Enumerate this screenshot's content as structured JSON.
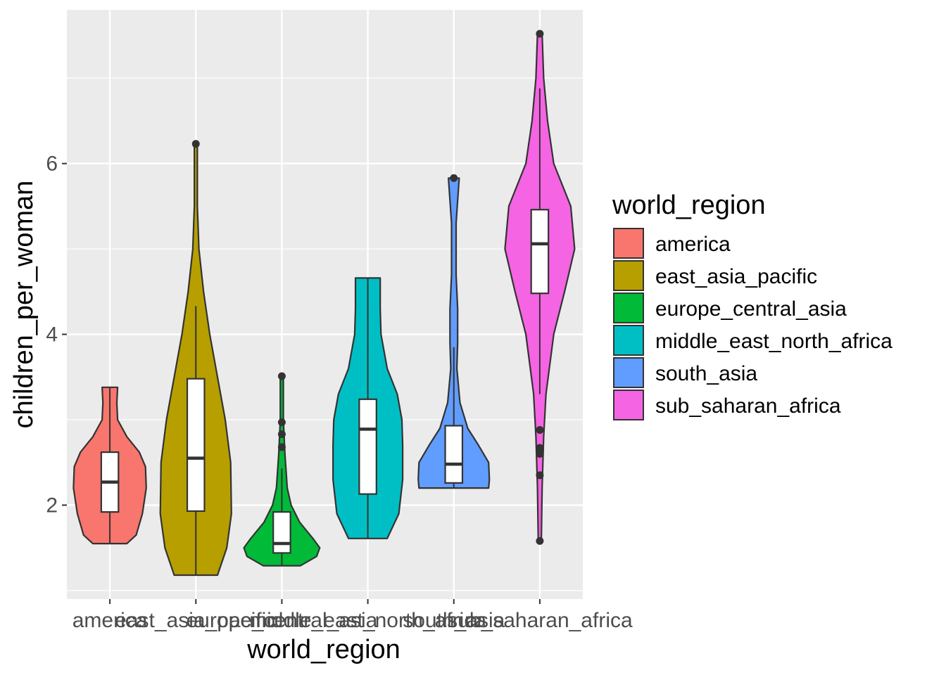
{
  "chart_data": {
    "type": "violin",
    "xlabel": "world_region",
    "ylabel": "children_per_woman",
    "ylim": [
      0.9,
      7.8
    ],
    "yticks": [
      2,
      4,
      6
    ],
    "categories": [
      "america",
      "east_asia_pacific",
      "europe_central_asia",
      "middle_east_north_africa",
      "south_asia",
      "sub_saharan_africa"
    ],
    "legend": {
      "title": "world_region",
      "position": "right"
    },
    "grid": true,
    "series": [
      {
        "name": "america",
        "color": "#F8766D",
        "boxplot": {
          "min": 1.55,
          "q1": 1.92,
          "median": 2.27,
          "q3": 2.62,
          "max": 3.38
        },
        "outliers": [],
        "density": [
          [
            1.55,
            0.22
          ],
          [
            1.65,
            0.34
          ],
          [
            1.9,
            0.42
          ],
          [
            2.2,
            0.47
          ],
          [
            2.45,
            0.46
          ],
          [
            2.62,
            0.38
          ],
          [
            2.8,
            0.22
          ],
          [
            3.0,
            0.1
          ],
          [
            3.2,
            0.09
          ],
          [
            3.38,
            0.1
          ]
        ]
      },
      {
        "name": "east_asia_pacific",
        "color": "#B79F00",
        "boxplot": {
          "min": 1.18,
          "q1": 1.93,
          "median": 2.55,
          "q3": 3.48,
          "max": 4.33
        },
        "outliers": [
          6.23
        ],
        "density": [
          [
            1.18,
            0.28
          ],
          [
            1.5,
            0.4
          ],
          [
            1.9,
            0.46
          ],
          [
            2.5,
            0.45
          ],
          [
            3.0,
            0.38
          ],
          [
            3.5,
            0.28
          ],
          [
            4.0,
            0.18
          ],
          [
            4.5,
            0.1
          ],
          [
            5.0,
            0.04
          ],
          [
            5.5,
            0.02
          ],
          [
            6.23,
            0.02
          ]
        ]
      },
      {
        "name": "europe_central_asia",
        "color": "#00BA38",
        "boxplot": {
          "min": 1.29,
          "q1": 1.44,
          "median": 1.55,
          "q3": 1.92,
          "max": 2.43
        },
        "outliers": [
          2.68,
          2.83,
          2.97,
          3.51
        ],
        "density": [
          [
            1.29,
            0.24
          ],
          [
            1.4,
            0.45
          ],
          [
            1.5,
            0.49
          ],
          [
            1.6,
            0.41
          ],
          [
            1.8,
            0.23
          ],
          [
            2.0,
            0.12
          ],
          [
            2.2,
            0.07
          ],
          [
            2.6,
            0.04
          ],
          [
            3.0,
            0.02
          ],
          [
            3.51,
            0.02
          ]
        ]
      },
      {
        "name": "middle_east_north_africa",
        "color": "#00BFC4",
        "boxplot": {
          "min": 1.61,
          "q1": 2.13,
          "median": 2.89,
          "q3": 3.24,
          "max": 4.66
        },
        "outliers": [],
        "density": [
          [
            1.61,
            0.25
          ],
          [
            1.9,
            0.4
          ],
          [
            2.3,
            0.45
          ],
          [
            2.7,
            0.45
          ],
          [
            3.0,
            0.44
          ],
          [
            3.3,
            0.38
          ],
          [
            3.6,
            0.25
          ],
          [
            4.0,
            0.17
          ],
          [
            4.3,
            0.16
          ],
          [
            4.66,
            0.16
          ]
        ]
      },
      {
        "name": "south_asia",
        "color": "#619CFF",
        "boxplot": {
          "min": 2.2,
          "q1": 2.26,
          "median": 2.48,
          "q3": 2.93,
          "max": 3.85
        },
        "outliers": [
          5.83
        ],
        "density": [
          [
            2.2,
            0.45
          ],
          [
            2.3,
            0.46
          ],
          [
            2.5,
            0.45
          ],
          [
            2.7,
            0.32
          ],
          [
            2.9,
            0.18
          ],
          [
            3.2,
            0.08
          ],
          [
            3.6,
            0.04
          ],
          [
            3.9,
            0.05
          ],
          [
            4.3,
            0.05
          ],
          [
            4.7,
            0.03
          ],
          [
            5.3,
            0.03
          ],
          [
            5.83,
            0.07
          ]
        ]
      },
      {
        "name": "sub_saharan_africa",
        "color": "#F564E3",
        "boxplot": {
          "min": 3.3,
          "q1": 4.48,
          "median": 5.06,
          "q3": 5.46,
          "max": 6.88
        },
        "outliers": [
          1.58,
          2.35,
          2.6,
          2.67,
          2.88,
          7.52
        ],
        "density": [
          [
            1.58,
            0.02
          ],
          [
            2.2,
            0.03
          ],
          [
            2.8,
            0.05
          ],
          [
            3.3,
            0.08
          ],
          [
            4.0,
            0.18
          ],
          [
            4.5,
            0.32
          ],
          [
            5.0,
            0.45
          ],
          [
            5.5,
            0.4
          ],
          [
            6.0,
            0.18
          ],
          [
            6.5,
            0.1
          ],
          [
            7.0,
            0.05
          ],
          [
            7.52,
            0.03
          ]
        ]
      }
    ]
  }
}
